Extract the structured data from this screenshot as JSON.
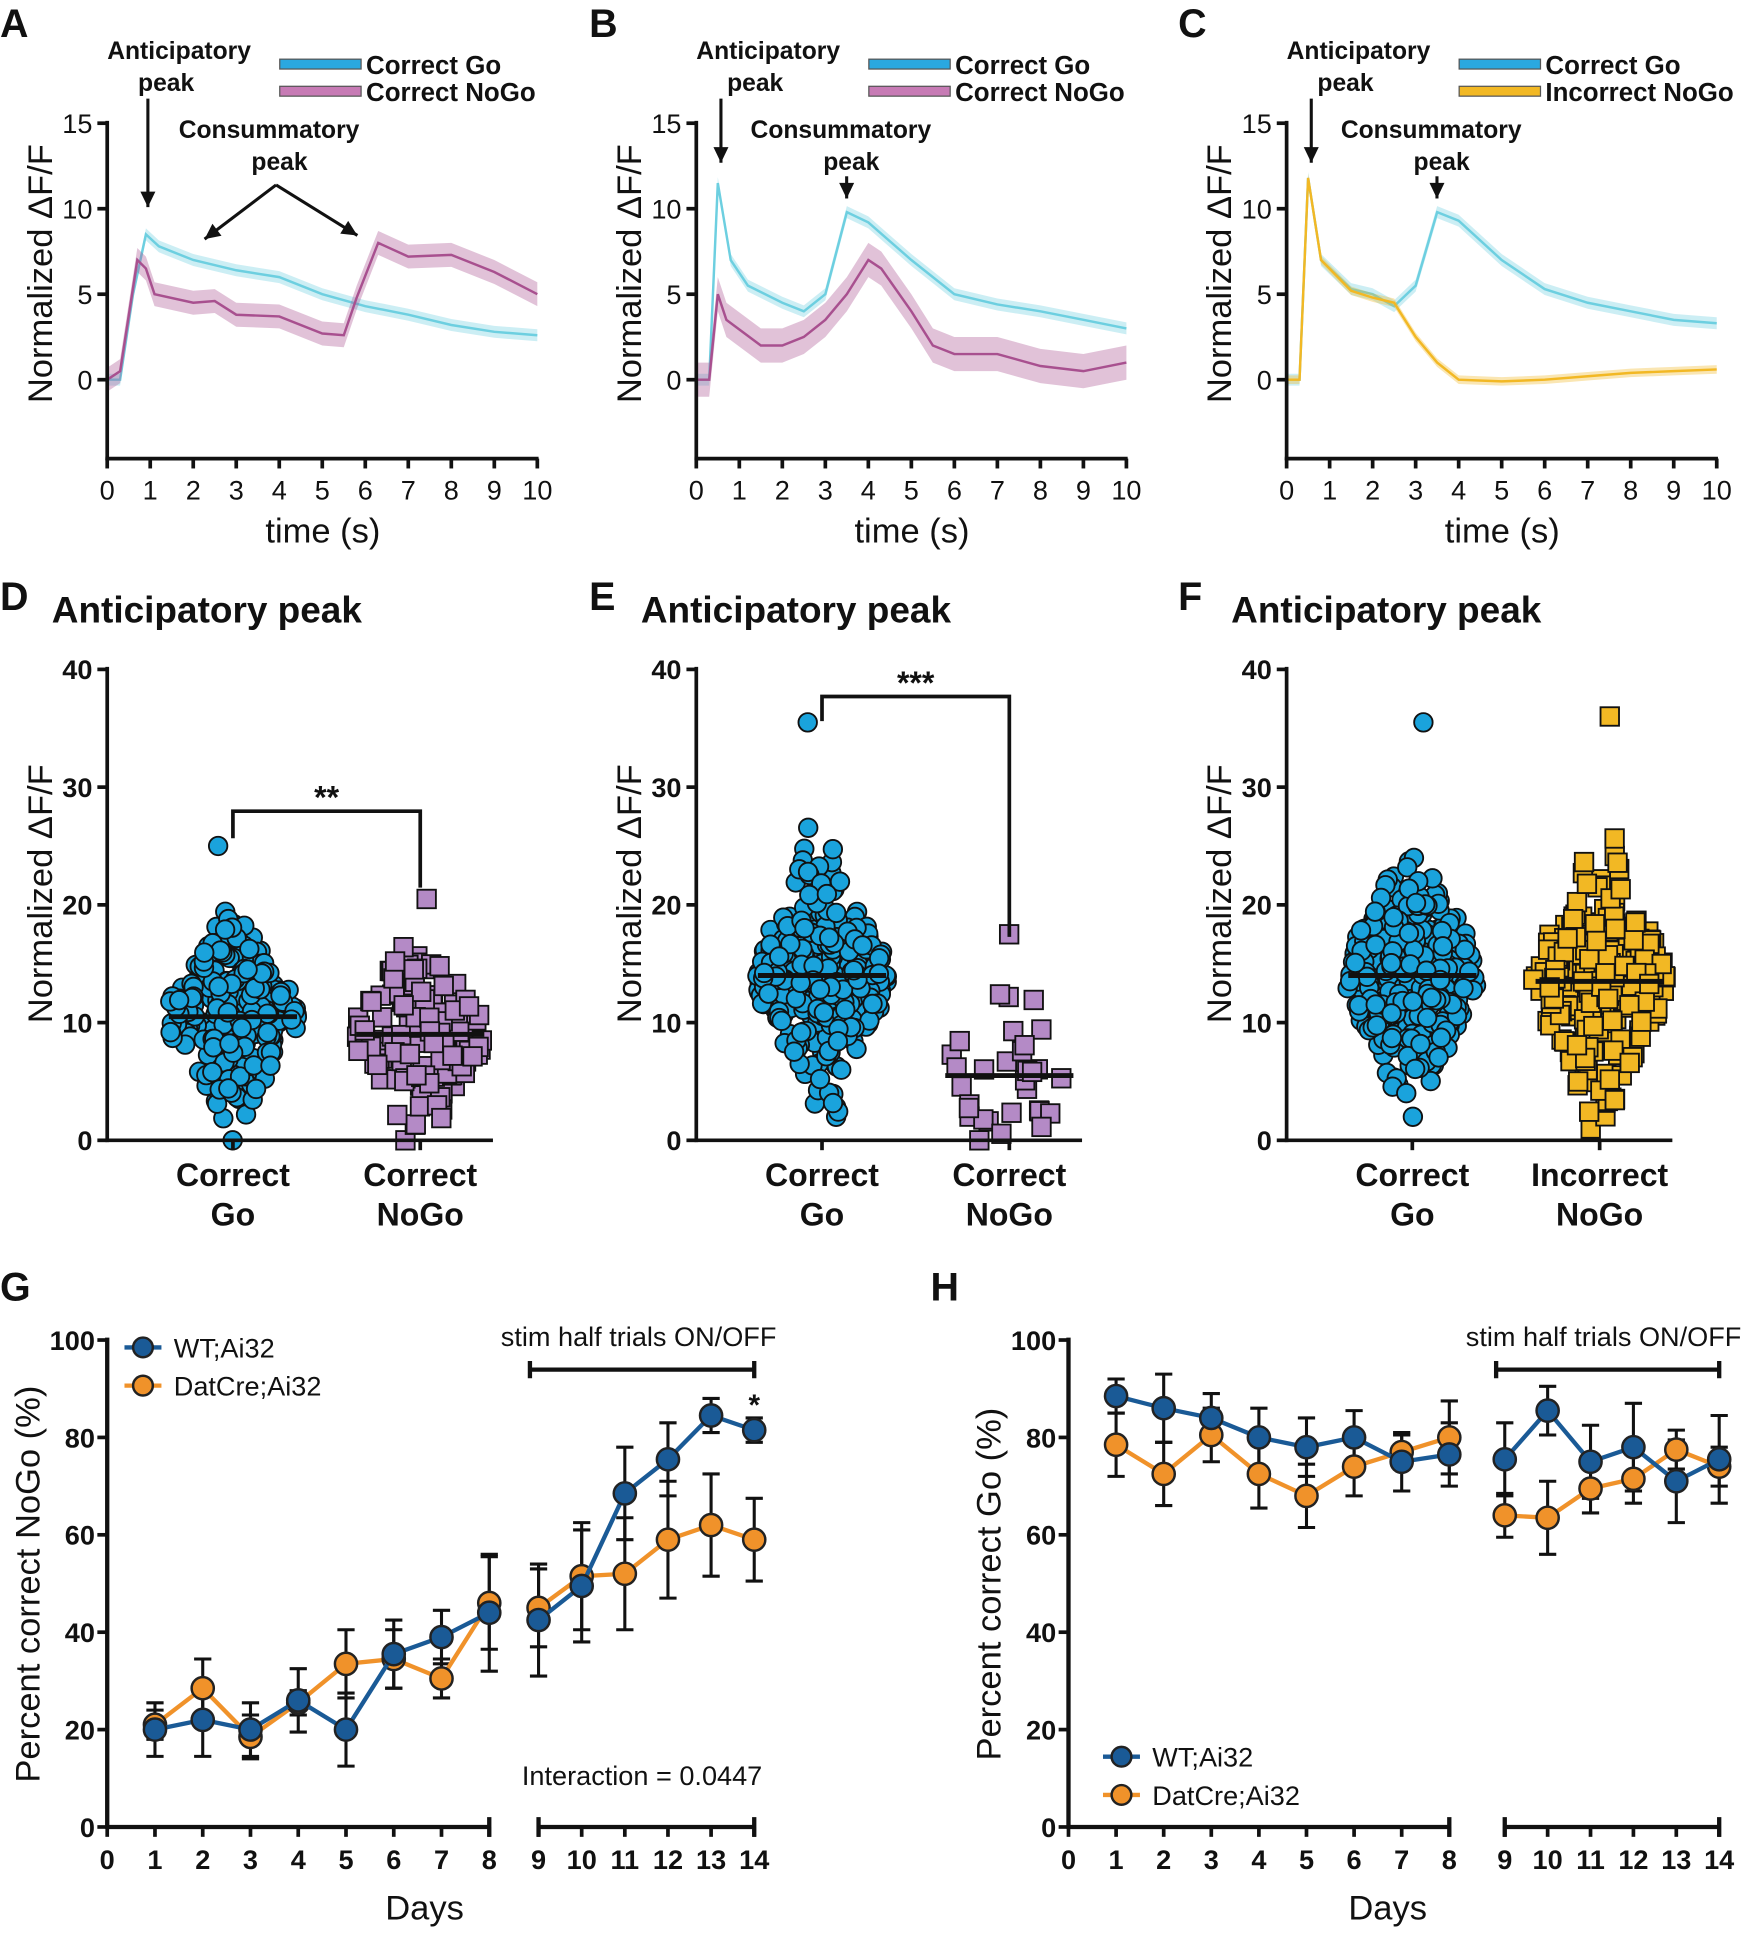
{
  "chart_data": [
    {
      "panel_label": "A",
      "type": "line",
      "xlabel": "time (s)",
      "ylabel": "Normalized ΔF/F",
      "xlim": [
        0,
        10
      ],
      "ylim": [
        -4.6,
        15
      ],
      "xticks": [
        0,
        1,
        2,
        3,
        4,
        5,
        6,
        7,
        8,
        9,
        10
      ],
      "yticks": [
        0,
        5,
        10,
        15
      ],
      "annotations": {
        "anticipatory_1": "Anticipatory",
        "anticipatory_2": "peak",
        "consummatory_1": "Consummatory",
        "consummatory_2": "peak"
      },
      "series": [
        {
          "name": "Correct Go",
          "color": "#6dcfe0",
          "legend_color": "#2aa8e0",
          "sem": 0.35,
          "x": [
            0,
            0.3,
            0.6,
            0.9,
            1.2,
            2,
            3,
            4,
            5,
            6,
            7,
            8,
            9,
            10
          ],
          "y": [
            0,
            0,
            5,
            8.5,
            7.8,
            7,
            6.4,
            6,
            5,
            4.3,
            3.8,
            3.2,
            2.8,
            2.6
          ]
        },
        {
          "name": "Correct NoGo",
          "color": "#a8508f",
          "legend_color": "#c77bb5",
          "sem": 0.7,
          "x": [
            0,
            0.3,
            0.7,
            0.9,
            1.1,
            2,
            2.5,
            3,
            4,
            5,
            5.5,
            5.8,
            6.3,
            7,
            8,
            9,
            10
          ],
          "y": [
            0,
            0.5,
            7,
            6.5,
            5,
            4.5,
            4.6,
            3.8,
            3.7,
            2.7,
            2.6,
            4.8,
            8,
            7.2,
            7.3,
            6.3,
            5
          ]
        }
      ]
    },
    {
      "panel_label": "B",
      "type": "line",
      "xlabel": "time (s)",
      "ylabel": "Normalized ΔF/F",
      "xlim": [
        0,
        10
      ],
      "ylim": [
        -4.6,
        15
      ],
      "xticks": [
        0,
        1,
        2,
        3,
        4,
        5,
        6,
        7,
        8,
        9,
        10
      ],
      "yticks": [
        0,
        5,
        10,
        15
      ],
      "annotations": {
        "anticipatory_1": "Anticipatory",
        "anticipatory_2": "peak",
        "consummatory_1": "Consummatory",
        "consummatory_2": "peak"
      },
      "series": [
        {
          "name": "Correct Go",
          "color": "#6dcfe0",
          "legend_color": "#2aa8e0",
          "sem": 0.35,
          "x": [
            0,
            0.3,
            0.5,
            0.8,
            1.2,
            2,
            2.5,
            3,
            3.5,
            4,
            5,
            6,
            7,
            8,
            9,
            10
          ],
          "y": [
            0,
            0,
            11.5,
            7,
            5.5,
            4.5,
            4,
            5,
            9.8,
            9.2,
            7,
            5,
            4.4,
            4,
            3.5,
            3
          ]
        },
        {
          "name": "Correct NoGo",
          "color": "#a8508f",
          "legend_color": "#c77bb5",
          "sem": 1.0,
          "x": [
            0,
            0.3,
            0.5,
            0.7,
            1.5,
            2,
            2.5,
            3,
            3.5,
            4,
            4.3,
            5,
            5.5,
            6,
            7,
            8,
            9,
            10
          ],
          "y": [
            0,
            0,
            5,
            3.5,
            2,
            2,
            2.5,
            3.5,
            5,
            7,
            6.5,
            4,
            2,
            1.5,
            1.5,
            0.8,
            0.5,
            1
          ]
        }
      ]
    },
    {
      "panel_label": "C",
      "type": "line",
      "xlabel": "time (s)",
      "ylabel": "Normalized ΔF/F",
      "xlim": [
        0,
        10
      ],
      "ylim": [
        -4.6,
        15
      ],
      "xticks": [
        0,
        1,
        2,
        3,
        4,
        5,
        6,
        7,
        8,
        9,
        10
      ],
      "yticks": [
        0,
        5,
        10,
        15
      ],
      "annotations": {
        "anticipatory_1": "Anticipatory",
        "anticipatory_2": "peak",
        "consummatory_1": "Consummatory",
        "consummatory_2": "peak"
      },
      "series": [
        {
          "name": "Correct Go",
          "color": "#6dcfe0",
          "legend_color": "#2aa8e0",
          "sem": 0.35,
          "x": [
            0,
            0.3,
            0.5,
            0.8,
            1.5,
            2,
            2.5,
            3,
            3.5,
            4,
            5,
            6,
            7,
            8,
            9,
            10
          ],
          "y": [
            0,
            0,
            11.8,
            7,
            5.3,
            5,
            4.3,
            5.5,
            9.8,
            9.3,
            7,
            5.3,
            4.5,
            4,
            3.5,
            3.3
          ]
        },
        {
          "name": "Incorrect NoGo",
          "color": "#f2b824",
          "legend_color": "#f2b824",
          "sem": 0.25,
          "x": [
            0,
            0.3,
            0.5,
            0.8,
            1.5,
            2,
            2.5,
            3,
            3.5,
            4,
            5,
            6,
            7,
            8,
            9,
            10
          ],
          "y": [
            0,
            0,
            11.8,
            7,
            5.2,
            4.8,
            4.5,
            2.5,
            1,
            0,
            -0.1,
            0,
            0.2,
            0.4,
            0.5,
            0.6
          ]
        }
      ]
    },
    {
      "panel_label": "D",
      "type": "scatter",
      "title": "Anticipatory peak",
      "ylabel": "Normalized ΔF/F",
      "ylim": [
        0,
        40
      ],
      "yticks": [
        0,
        10,
        20,
        30,
        40
      ],
      "significance": "**",
      "groups": [
        {
          "label_1": "Correct",
          "label_2": "Go",
          "marker": "circle",
          "color": "#1aa3dc",
          "n": 260,
          "mean": 10.5,
          "sd": 4.2,
          "min": 0,
          "max": 25
        },
        {
          "label_1": "Correct",
          "label_2": "NoGo",
          "marker": "square",
          "color": "#b48ac6",
          "n": 130,
          "mean": 9,
          "sd": 4.2,
          "min": 0,
          "max": 20.5
        }
      ]
    },
    {
      "panel_label": "E",
      "type": "scatter",
      "title": "Anticipatory peak",
      "ylabel": "Normalized ΔF/F",
      "ylim": [
        0,
        40
      ],
      "yticks": [
        0,
        10,
        20,
        30,
        40
      ],
      "significance": "***",
      "groups": [
        {
          "label_1": "Correct",
          "label_2": "Go",
          "marker": "circle",
          "color": "#1aa3dc",
          "n": 300,
          "mean": 14,
          "sd": 5.5,
          "min": 2,
          "max": 35.5
        },
        {
          "label_1": "Correct",
          "label_2": "NoGo",
          "marker": "square",
          "color": "#b48ac6",
          "n": 32,
          "mean": 5.5,
          "sd": 4.5,
          "min": 0,
          "max": 17.5
        }
      ]
    },
    {
      "panel_label": "F",
      "type": "scatter",
      "title": "Anticipatory peak",
      "ylabel": "Normalized ΔF/F",
      "ylim": [
        0,
        40
      ],
      "yticks": [
        0,
        10,
        20,
        30,
        40
      ],
      "significance": "",
      "groups": [
        {
          "label_1": "Correct",
          "label_2": "Go",
          "marker": "circle",
          "color": "#1aa3dc",
          "n": 300,
          "mean": 14,
          "sd": 5.5,
          "min": 2,
          "max": 35.5
        },
        {
          "label_1": "Incorrect",
          "label_2": "NoGo",
          "marker": "square",
          "color": "#f2b824",
          "n": 260,
          "mean": 13.5,
          "sd": 5.5,
          "min": 1,
          "max": 36
        }
      ]
    },
    {
      "panel_label": "G",
      "type": "line",
      "xlabel": "Days",
      "ylabel": "Percent correct NoGo (%)",
      "ylim": [
        0,
        100
      ],
      "yticks": [
        0,
        20,
        40,
        60,
        80,
        100
      ],
      "xticks": [
        0,
        1,
        2,
        3,
        4,
        5,
        6,
        7,
        8,
        9,
        10,
        11,
        12,
        13,
        14
      ],
      "bracket_label": "stim half trials ON/OFF",
      "stat_text": "Interaction = 0.0447",
      "star": "*",
      "star_day": 14,
      "legend_position": "top-left",
      "series": [
        {
          "name": "WT;Ai32",
          "color": "#1a5a96",
          "x": [
            1,
            2,
            3,
            4,
            5,
            6,
            7,
            8,
            9,
            10,
            11,
            12,
            13,
            14
          ],
          "y": [
            20,
            22,
            20,
            26,
            20,
            35.5,
            39,
            44,
            42.5,
            49.5,
            68.5,
            75.5,
            84.5,
            81.5
          ],
          "err": [
            5.5,
            7.5,
            5.5,
            6.5,
            7.5,
            7,
            5.5,
            12,
            11.5,
            11.5,
            9.5,
            7.5,
            3.5,
            2.5
          ]
        },
        {
          "name": "DatCre;Ai32",
          "color": "#f0922a",
          "x": [
            1,
            2,
            3,
            4,
            5,
            6,
            7,
            8,
            9,
            10,
            11,
            12,
            13,
            14
          ],
          "y": [
            21,
            28.5,
            18.5,
            25.5,
            33.5,
            34.5,
            30.5,
            46,
            45,
            51.5,
            52,
            59,
            62,
            59
          ],
          "err": [
            3,
            6,
            4.5,
            2.5,
            7,
            6,
            4,
            9.5,
            8,
            11,
            11.5,
            12,
            10.5,
            8.5
          ]
        }
      ]
    },
    {
      "panel_label": "H",
      "type": "line",
      "xlabel": "Days",
      "ylabel": "Percent correct Go (%)",
      "ylim": [
        0,
        100
      ],
      "yticks": [
        0,
        20,
        40,
        60,
        80,
        100
      ],
      "xticks": [
        0,
        1,
        2,
        3,
        4,
        5,
        6,
        7,
        8,
        9,
        10,
        11,
        12,
        13,
        14
      ],
      "bracket_label": "stim half trials ON/OFF",
      "legend_position": "bottom-left",
      "series": [
        {
          "name": "WT;Ai32",
          "color": "#1a5a96",
          "x": [
            1,
            2,
            3,
            4,
            5,
            6,
            7,
            8,
            9,
            10,
            11,
            12,
            13,
            14
          ],
          "y": [
            88.5,
            86,
            84,
            80,
            78,
            80,
            75,
            76.5,
            75.5,
            85.5,
            75,
            78,
            71,
            75.5
          ],
          "err": [
            3.5,
            7,
            5,
            6,
            6,
            5.5,
            6,
            6.5,
            7.5,
            5,
            7.5,
            9,
            8.5,
            9
          ]
        },
        {
          "name": "DatCre;Ai32",
          "color": "#f0922a",
          "x": [
            1,
            2,
            3,
            4,
            5,
            6,
            7,
            8,
            9,
            10,
            11,
            12,
            13,
            14
          ],
          "y": [
            78.5,
            72.5,
            80.5,
            72.5,
            68,
            74,
            77,
            80,
            64,
            63.5,
            69.5,
            71.5,
            77.5,
            74
          ],
          "err": [
            6.5,
            6.5,
            5.5,
            7,
            6.5,
            6,
            3.5,
            7.5,
            4.5,
            7.5,
            5,
            5,
            4,
            4
          ]
        }
      ]
    }
  ]
}
